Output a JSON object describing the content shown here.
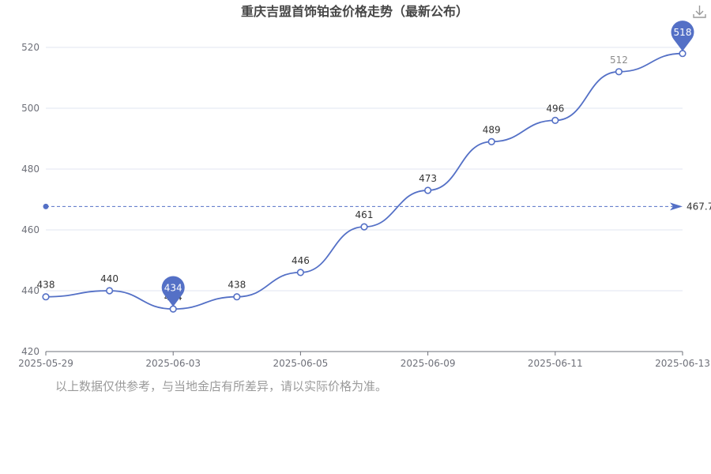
{
  "title": "重庆吉盟首饰铂金价格走势（最新公布）",
  "footnote": "以上数据仅供参考，与当地金店有所差异，请以实际价格为准。",
  "colors": {
    "line": "#5470c6",
    "grid": "#e0e6f1",
    "axis": "#6e7079",
    "average_line": "#5470c6",
    "pin": "#5470c6"
  },
  "chart_data": {
    "type": "line",
    "title": "重庆吉盟首饰铂金价格走势（最新公布）",
    "xlabel": "",
    "ylabel": "",
    "categories": [
      "2025-05-29",
      "2025-05-30",
      "2025-06-03",
      "2025-06-04",
      "2025-06-05",
      "2025-06-06",
      "2025-06-09",
      "2025-06-10",
      "2025-06-11",
      "2025-06-12",
      "2025-06-13"
    ],
    "x_tick_labels": [
      "2025-05-29",
      "2025-06-03",
      "2025-06-05",
      "2025-06-09",
      "2025-06-11",
      "2025-06-13"
    ],
    "series": [
      {
        "values": [
          438,
          440,
          434,
          438,
          446,
          461,
          473,
          489,
          496,
          512,
          518
        ]
      }
    ],
    "ylim": [
      420,
      520
    ],
    "y_ticks": [
      420,
      440,
      460,
      480,
      500,
      520
    ],
    "average": 467.7,
    "average_label": "467.7",
    "min_marker": {
      "index": 2,
      "label": "434"
    },
    "max_marker": {
      "index": 10,
      "label": "518"
    },
    "faded_label_index": 9,
    "hidden_label_indices": [
      10
    ],
    "grid": true,
    "legend": "none"
  },
  "toolbar": {
    "save_icon": "download-icon"
  }
}
